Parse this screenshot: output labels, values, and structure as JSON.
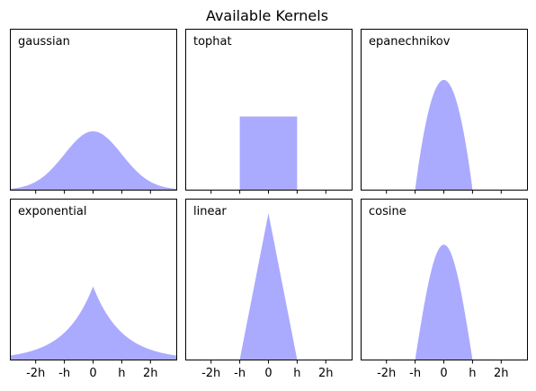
{
  "figure": {
    "title": "Available Kernels",
    "fill_color": "#aaaaff"
  },
  "chart_data": [
    {
      "type": "area",
      "label": "gaussian",
      "kernel": "gaussian",
      "x_ticks": [
        "-2h",
        "-h",
        "0",
        "h",
        "2h"
      ],
      "x_tick_labels_shown": false,
      "xlim": [
        -2.9,
        2.9
      ],
      "ylim": [
        0,
        1.1
      ],
      "y_ticks": [],
      "peak_value": 0.3989,
      "support": [
        -2.9,
        2.9
      ]
    },
    {
      "type": "area",
      "label": "tophat",
      "kernel": "tophat",
      "x_ticks": [
        "-2h",
        "-h",
        "0",
        "h",
        "2h"
      ],
      "x_tick_labels_shown": false,
      "xlim": [
        -2.9,
        2.9
      ],
      "ylim": [
        0,
        1.1
      ],
      "y_ticks": [],
      "peak_value": 0.5,
      "support": [
        -1,
        1
      ]
    },
    {
      "type": "area",
      "label": "epanechnikov",
      "kernel": "epanechnikov",
      "x_ticks": [
        "-2h",
        "-h",
        "0",
        "h",
        "2h"
      ],
      "x_tick_labels_shown": false,
      "xlim": [
        -2.9,
        2.9
      ],
      "ylim": [
        0,
        1.1
      ],
      "y_ticks": [],
      "peak_value": 0.75,
      "support": [
        -1,
        1
      ]
    },
    {
      "type": "area",
      "label": "exponential",
      "kernel": "exponential",
      "x_ticks": [
        "-2h",
        "-h",
        "0",
        "h",
        "2h"
      ],
      "x_tick_labels_shown": true,
      "xlim": [
        -2.9,
        2.9
      ],
      "ylim": [
        0,
        1.1
      ],
      "y_ticks": [],
      "peak_value": 0.5,
      "support": [
        -2.9,
        2.9
      ]
    },
    {
      "type": "area",
      "label": "linear",
      "kernel": "linear",
      "x_ticks": [
        "-2h",
        "-h",
        "0",
        "h",
        "2h"
      ],
      "x_tick_labels_shown": true,
      "xlim": [
        -2.9,
        2.9
      ],
      "ylim": [
        0,
        1.1
      ],
      "y_ticks": [],
      "peak_value": 1.0,
      "support": [
        -1,
        1
      ]
    },
    {
      "type": "area",
      "label": "cosine",
      "kernel": "cosine",
      "x_ticks": [
        "-2h",
        "-h",
        "0",
        "h",
        "2h"
      ],
      "x_tick_labels_shown": true,
      "xlim": [
        -2.9,
        2.9
      ],
      "ylim": [
        0,
        1.1
      ],
      "y_ticks": [],
      "peak_value": 0.785,
      "support": [
        -1,
        1
      ]
    }
  ]
}
